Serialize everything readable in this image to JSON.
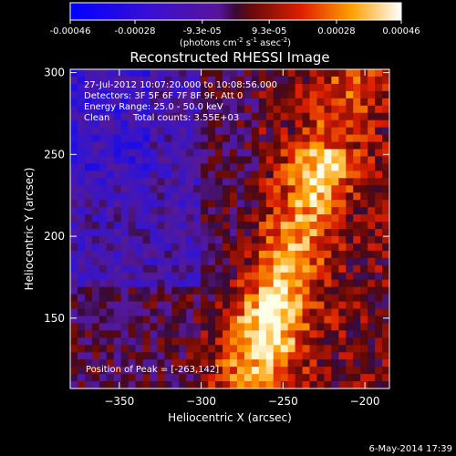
{
  "chart_data": {
    "type": "heatmap",
    "title": "Reconstructed RHESSI Image",
    "xlabel": "Heliocentric X (arcsec)",
    "ylabel": "Heliocentric Y (arcsec)",
    "xlim": [
      -380,
      -185
    ],
    "ylim": [
      107,
      302
    ],
    "x_ticks": [
      -350,
      -300,
      -250,
      -200
    ],
    "y_ticks": [
      150,
      200,
      250,
      300
    ],
    "colorbar": {
      "range": [
        -0.00046,
        0.00046
      ],
      "tick_values": [
        -0.00046,
        -0.00028,
        -9.3e-05,
        9.3e-05,
        0.00028,
        0.00046
      ],
      "tick_labels": [
        "-0.00046",
        "-0.00028",
        "-9.3e-05",
        "9.3e-05",
        "0.00028",
        "0.00046"
      ],
      "unit_label": "(photons cm",
      "unit_exp1": "-2",
      "unit_mid": " s",
      "unit_exp2": "-1",
      "unit_end": " asec",
      "unit_exp3": "-2",
      "unit_close": ")"
    },
    "annotations": {
      "line1": "27-Jul-2012 10:07:20.000 to 10:08:56.000",
      "line2": "Detectors: 3F 5F 6F 7F 8F 9F, Att 0",
      "line3": "Energy Range: 25.0 - 50.0 keV",
      "line4a": "Clean",
      "line4b": "Total counts: 3.55E+03",
      "peak": "Position of Peak = [-263,142]"
    },
    "peak_position": [
      -263,
      142
    ],
    "grid": false
  },
  "footer": {
    "date": "6-May-2014 17:39"
  }
}
